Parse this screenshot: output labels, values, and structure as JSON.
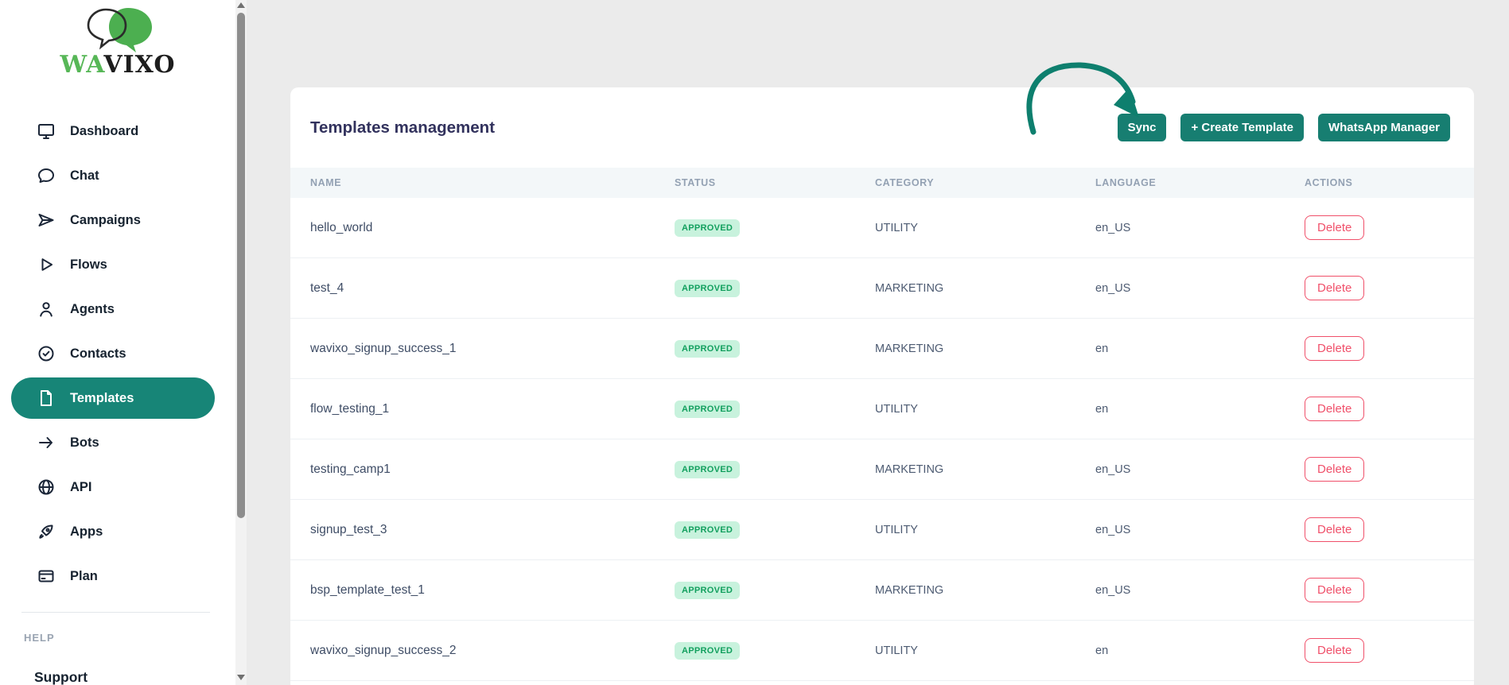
{
  "logo": {
    "brand_prefix": "WA",
    "brand_suffix": "VIXO"
  },
  "sidebar": {
    "items": [
      {
        "label": "Dashboard",
        "icon": "monitor",
        "active": false
      },
      {
        "label": "Chat",
        "icon": "chat-bubble",
        "active": false
      },
      {
        "label": "Campaigns",
        "icon": "send",
        "active": false
      },
      {
        "label": "Flows",
        "icon": "play",
        "active": false
      },
      {
        "label": "Agents",
        "icon": "user",
        "active": false
      },
      {
        "label": "Contacts",
        "icon": "badge-check",
        "active": false
      },
      {
        "label": "Templates",
        "icon": "document",
        "active": true
      },
      {
        "label": "Bots",
        "icon": "arrow-right",
        "active": false
      },
      {
        "label": "API",
        "icon": "globe",
        "active": false
      },
      {
        "label": "Apps",
        "icon": "rocket",
        "active": false
      },
      {
        "label": "Plan",
        "icon": "credit-card",
        "active": false
      }
    ],
    "help_section_label": "HELP",
    "support_label": "Support"
  },
  "header": {
    "title": "Templates management",
    "buttons": [
      {
        "name": "sync-button",
        "label": "Sync"
      },
      {
        "name": "create-template-button",
        "label": "+ Create Template"
      },
      {
        "name": "whatsapp-manager-button",
        "label": "WhatsApp Manager"
      }
    ]
  },
  "table": {
    "columns": [
      "NAME",
      "STATUS",
      "CATEGORY",
      "LANGUAGE",
      "ACTIONS"
    ],
    "rows": [
      {
        "name": "hello_world",
        "status": "APPROVED",
        "category": "UTILITY",
        "language": "en_US",
        "action": "Delete"
      },
      {
        "name": "test_4",
        "status": "APPROVED",
        "category": "MARKETING",
        "language": "en_US",
        "action": "Delete"
      },
      {
        "name": "wavixo_signup_success_1",
        "status": "APPROVED",
        "category": "MARKETING",
        "language": "en",
        "action": "Delete"
      },
      {
        "name": "flow_testing_1",
        "status": "APPROVED",
        "category": "UTILITY",
        "language": "en",
        "action": "Delete"
      },
      {
        "name": "testing_camp1",
        "status": "APPROVED",
        "category": "MARKETING",
        "language": "en_US",
        "action": "Delete"
      },
      {
        "name": "signup_test_3",
        "status": "APPROVED",
        "category": "UTILITY",
        "language": "en_US",
        "action": "Delete"
      },
      {
        "name": "bsp_template_test_1",
        "status": "APPROVED",
        "category": "MARKETING",
        "language": "en_US",
        "action": "Delete"
      },
      {
        "name": "wavixo_signup_success_2",
        "status": "APPROVED",
        "category": "UTILITY",
        "language": "en",
        "action": "Delete"
      }
    ]
  },
  "colors": {
    "accent_teal": "#177e71",
    "active_pill_teal": "#178577",
    "badge_bg": "#c8f2dd",
    "badge_text": "#13a05f",
    "delete_red": "#f0506a",
    "logo_green": "#57b757",
    "title_indigo": "#32325d"
  }
}
